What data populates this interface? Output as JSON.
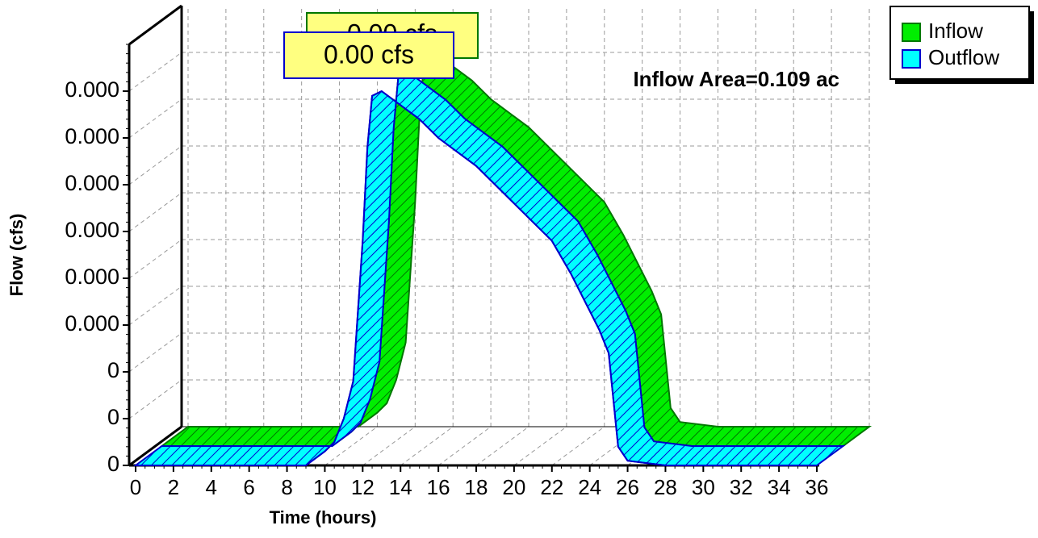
{
  "chart_data": {
    "type": "ribbon3d",
    "x_label": "Time  (hours)",
    "y_label": "Flow  (cfs)",
    "annotation": "Inflow Area=0.109 ac",
    "x": [
      0,
      2,
      4,
      6,
      8,
      9,
      10,
      10.5,
      11,
      11.5,
      12,
      12.25,
      12.5,
      13,
      15,
      16,
      18,
      20,
      22,
      23,
      24,
      24.5,
      25,
      25.5,
      26,
      28,
      30,
      32,
      34,
      36
    ],
    "series": [
      {
        "name": "Inflow",
        "color": "#00ee00",
        "line_color": "#007700",
        "peak_label": "0.00 cfs",
        "values": [
          0,
          0,
          0,
          0,
          0,
          0,
          3e-05,
          5e-05,
          0.0001,
          0.00018,
          0.00048,
          0.00068,
          0.00079,
          0.0008,
          0.00074,
          0.0007,
          0.00064,
          0.00056,
          0.00048,
          0.00041,
          0.00033,
          0.00029,
          0.00024,
          4e-05,
          1e-05,
          0,
          0,
          0,
          0,
          0
        ]
      },
      {
        "name": "Outflow",
        "color": "#00ffff",
        "line_color": "#0000cc",
        "peak_label": "0.00 cfs",
        "values": [
          0,
          0,
          0,
          0,
          0,
          0,
          3e-05,
          5e-05,
          0.0001,
          0.00018,
          0.00048,
          0.00068,
          0.00079,
          0.0008,
          0.00074,
          0.0007,
          0.00064,
          0.00056,
          0.00048,
          0.00041,
          0.00033,
          0.00029,
          0.00024,
          4e-05,
          1e-05,
          0,
          0,
          0,
          0,
          0
        ]
      }
    ],
    "xlim": [
      0,
      36
    ],
    "xticks": [
      0,
      2,
      4,
      6,
      8,
      10,
      12,
      14,
      16,
      18,
      20,
      22,
      24,
      26,
      28,
      30,
      32,
      34,
      36
    ],
    "ylim": [
      0,
      0.0009
    ],
    "yticks": [
      0,
      {
        "value": 0.0001,
        "label": "0"
      },
      {
        "value": 0.0002,
        "label": "0"
      },
      {
        "value": 0.0003,
        "label": "0.000"
      },
      {
        "value": 0.0004,
        "label": "0.000"
      },
      {
        "value": 0.0005,
        "label": "0.000"
      },
      {
        "value": 0.0006,
        "label": "0.000"
      },
      {
        "value": 0.0007,
        "label": "0.000"
      },
      {
        "value": 0.0008,
        "label": "0.000"
      }
    ],
    "grid": true,
    "legend": "top-right"
  }
}
